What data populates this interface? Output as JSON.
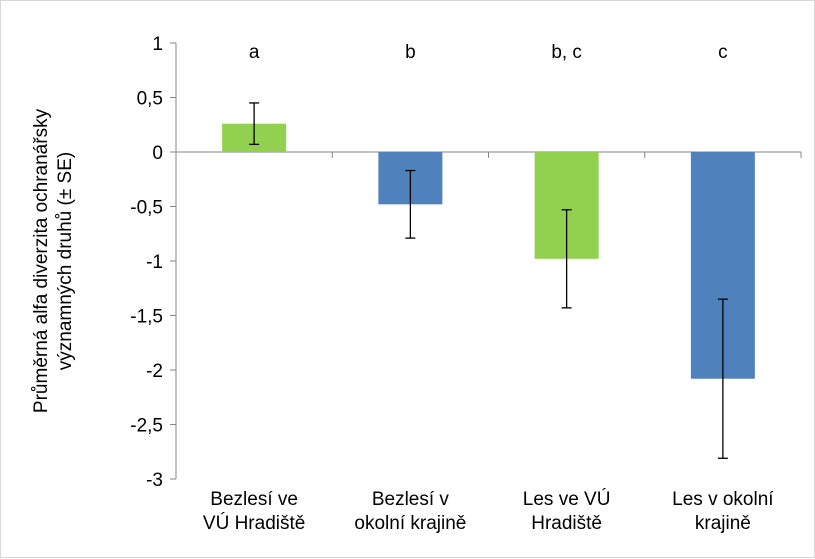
{
  "chart_data": {
    "type": "bar",
    "categories": [
      [
        "Bezlesí ve",
        "VÚ Hradiště"
      ],
      [
        "Bezlesí v",
        "okolní krajině"
      ],
      [
        "Les ve VÚ",
        "Hradiště"
      ],
      [
        "Les v okolní",
        "krajině"
      ]
    ],
    "values": [
      0.26,
      -0.48,
      -0.98,
      -2.08
    ],
    "errors": [
      0.19,
      0.31,
      0.45,
      0.73
    ],
    "significance_labels": [
      "a",
      "b",
      "b, c",
      "c"
    ],
    "bar_colors": [
      "#92d050",
      "#4f81bd",
      "#92d050",
      "#4f81bd"
    ],
    "ylabel": [
      "Průměrná alfa diverzita ochranářsky",
      "významných druhů (± SE)"
    ],
    "ylim": [
      -3,
      1
    ],
    "yticks": [
      1,
      0.5,
      0,
      -0.5,
      -1,
      -1.5,
      -2,
      -2.5,
      -3
    ],
    "ytick_labels": [
      "1",
      "0,5",
      "0",
      "-0,5",
      "-1",
      "-1,5",
      "-2",
      "-2,5",
      "-3"
    ],
    "grid": false,
    "legend": "none"
  }
}
